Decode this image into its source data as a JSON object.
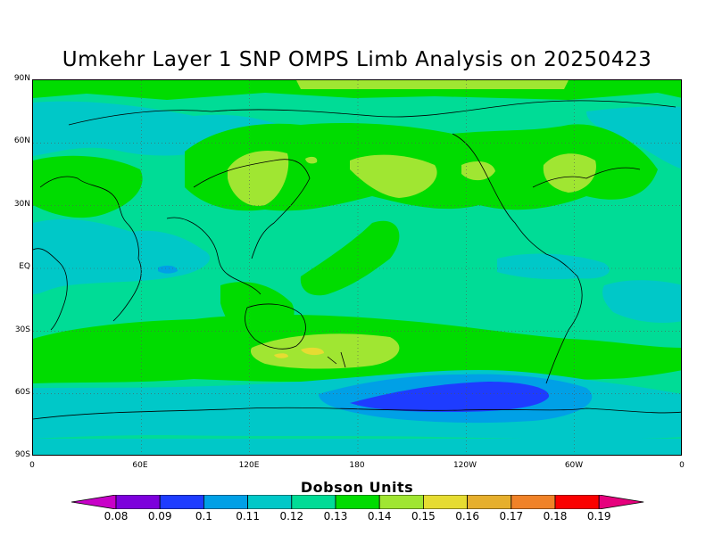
{
  "title": "Umkehr Layer 1 SNP OMPS Limb Analysis on 20250423",
  "lat_labels": [
    "90N",
    "60N",
    "30N",
    "EQ",
    "30S",
    "60S",
    "90S"
  ],
  "lon_labels": [
    "0",
    "60E",
    "120E",
    "180",
    "120W",
    "60W",
    "0"
  ],
  "colorbar": {
    "title": "Dobson Units",
    "labels": [
      "0.08",
      "0.09",
      "0.1",
      "0.11",
      "0.12",
      "0.13",
      "0.14",
      "0.15",
      "0.16",
      "0.17",
      "0.18",
      "0.19"
    ],
    "colors": [
      "#c800c8",
      "#7d00dc",
      "#1e3cff",
      "#00a0e6",
      "#00c8c8",
      "#00dc96",
      "#00dc00",
      "#a0e632",
      "#e6dc32",
      "#e6af2d",
      "#f08228",
      "#fa0000",
      "#e6007d"
    ]
  },
  "map": {
    "background": "#00dc96",
    "fill_colors": {
      "light_blue": "#00c8c8",
      "blue": "#00a0e6",
      "dark_blue": "#1e3cff",
      "green": "#00dc00",
      "yellow_green": "#a0e632",
      "yellow": "#e6dc32"
    }
  }
}
